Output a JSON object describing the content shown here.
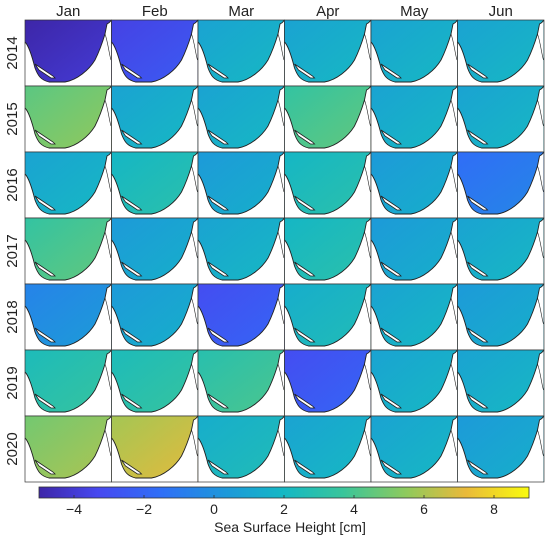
{
  "chart_data": {
    "type": "heatmap",
    "columns": [
      "Jan",
      "Feb",
      "Mar",
      "Apr",
      "May",
      "Jun"
    ],
    "rows": [
      "2014",
      "2015",
      "2016",
      "2017",
      "2018",
      "2019",
      "2020"
    ],
    "values": [
      [
        -4.5,
        -3.0,
        1.5,
        1.5,
        1.5,
        1.5
      ],
      [
        5.0,
        1.5,
        1.5,
        4.0,
        1.5,
        1.5
      ],
      [
        1.5,
        2.5,
        1.0,
        2.5,
        1.0,
        -1.0
      ],
      [
        4.0,
        1.0,
        1.5,
        2.5,
        1.0,
        1.5
      ],
      [
        0.0,
        1.0,
        -2.5,
        2.0,
        1.5,
        1.0
      ],
      [
        3.0,
        3.0,
        3.5,
        -2.5,
        1.5,
        1.5
      ],
      [
        5.5,
        6.5,
        2.0,
        1.5,
        1.5,
        1.0
      ]
    ],
    "colorbar": {
      "label": "Sea Surface Height [cm]",
      "range": [
        -5,
        9
      ],
      "ticks": [
        "−4",
        "−2",
        "0",
        "2",
        "4",
        "6",
        "8"
      ],
      "tick_values": [
        -4,
        -2,
        0,
        2,
        4,
        6,
        8
      ],
      "colormap": "parula"
    }
  }
}
